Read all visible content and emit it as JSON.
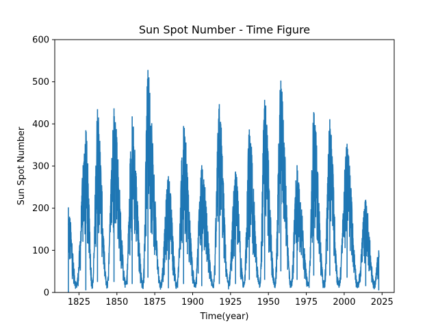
{
  "chart_data": {
    "type": "line",
    "title": "Sun Spot Number - Time Figure",
    "xlabel": "Time(year)",
    "ylabel": "Sun Spot Number",
    "xlim": [
      1809,
      2033
    ],
    "ylim": [
      0,
      600
    ],
    "xticks": [
      1825,
      1850,
      1875,
      1900,
      1925,
      1950,
      1975,
      2000,
      2025
    ],
    "yticks": [
      0,
      100,
      200,
      300,
      400,
      500,
      600
    ],
    "grid": false,
    "legend": "none",
    "series": [
      {
        "color": "#1f77b4",
        "cycle_peaks": [
          {
            "year": 1818.0,
            "max": 202,
            "band_low": 0
          },
          {
            "year": 1829.5,
            "max": 385,
            "band_low": 5
          },
          {
            "year": 1837.2,
            "max": 435,
            "band_low": 25
          },
          {
            "year": 1848.1,
            "max": 437,
            "band_low": 25
          },
          {
            "year": 1860.1,
            "max": 418,
            "band_low": 20
          },
          {
            "year": 1870.5,
            "max": 528,
            "band_low": 35
          },
          {
            "year": 1884.0,
            "max": 276,
            "band_low": 10
          },
          {
            "year": 1894.0,
            "max": 395,
            "band_low": 20
          },
          {
            "year": 1906.0,
            "max": 302,
            "band_low": 15
          },
          {
            "year": 1917.6,
            "max": 447,
            "band_low": 20
          },
          {
            "year": 1928.3,
            "max": 287,
            "band_low": 20
          },
          {
            "year": 1937.4,
            "max": 387,
            "band_low": 30
          },
          {
            "year": 1947.5,
            "max": 457,
            "band_low": 30
          },
          {
            "year": 1958.2,
            "max": 503,
            "band_low": 50
          },
          {
            "year": 1968.9,
            "max": 302,
            "band_low": 30
          },
          {
            "year": 1979.9,
            "max": 428,
            "band_low": 40
          },
          {
            "year": 1990.5,
            "max": 411,
            "band_low": 40
          },
          {
            "year": 2001.9,
            "max": 353,
            "band_low": 35
          },
          {
            "year": 2014.2,
            "max": 220,
            "band_low": 15
          },
          {
            "year": 2022.8,
            "max": 100,
            "band_low": 5
          }
        ],
        "cycle_minima": [
          {
            "year": 1823.3,
            "min": 0
          },
          {
            "year": 1833.9,
            "min": 0
          },
          {
            "year": 1843.5,
            "min": 0
          },
          {
            "year": 1856.0,
            "min": 0
          },
          {
            "year": 1867.2,
            "min": 0
          },
          {
            "year": 1878.9,
            "min": 0
          },
          {
            "year": 1889.6,
            "min": 0
          },
          {
            "year": 1901.7,
            "min": 0
          },
          {
            "year": 1913.6,
            "min": 0
          },
          {
            "year": 1923.6,
            "min": 0
          },
          {
            "year": 1933.8,
            "min": 0
          },
          {
            "year": 1944.2,
            "min": 0
          },
          {
            "year": 1954.3,
            "min": 0
          },
          {
            "year": 1964.9,
            "min": 0
          },
          {
            "year": 1976.5,
            "min": 0
          },
          {
            "year": 1986.8,
            "min": 0
          },
          {
            "year": 1996.4,
            "min": 0
          },
          {
            "year": 2008.9,
            "min": 0
          },
          {
            "year": 2019.9,
            "min": 0
          }
        ],
        "x_start": 1818.0,
        "x_end": 2023.0
      }
    ]
  }
}
